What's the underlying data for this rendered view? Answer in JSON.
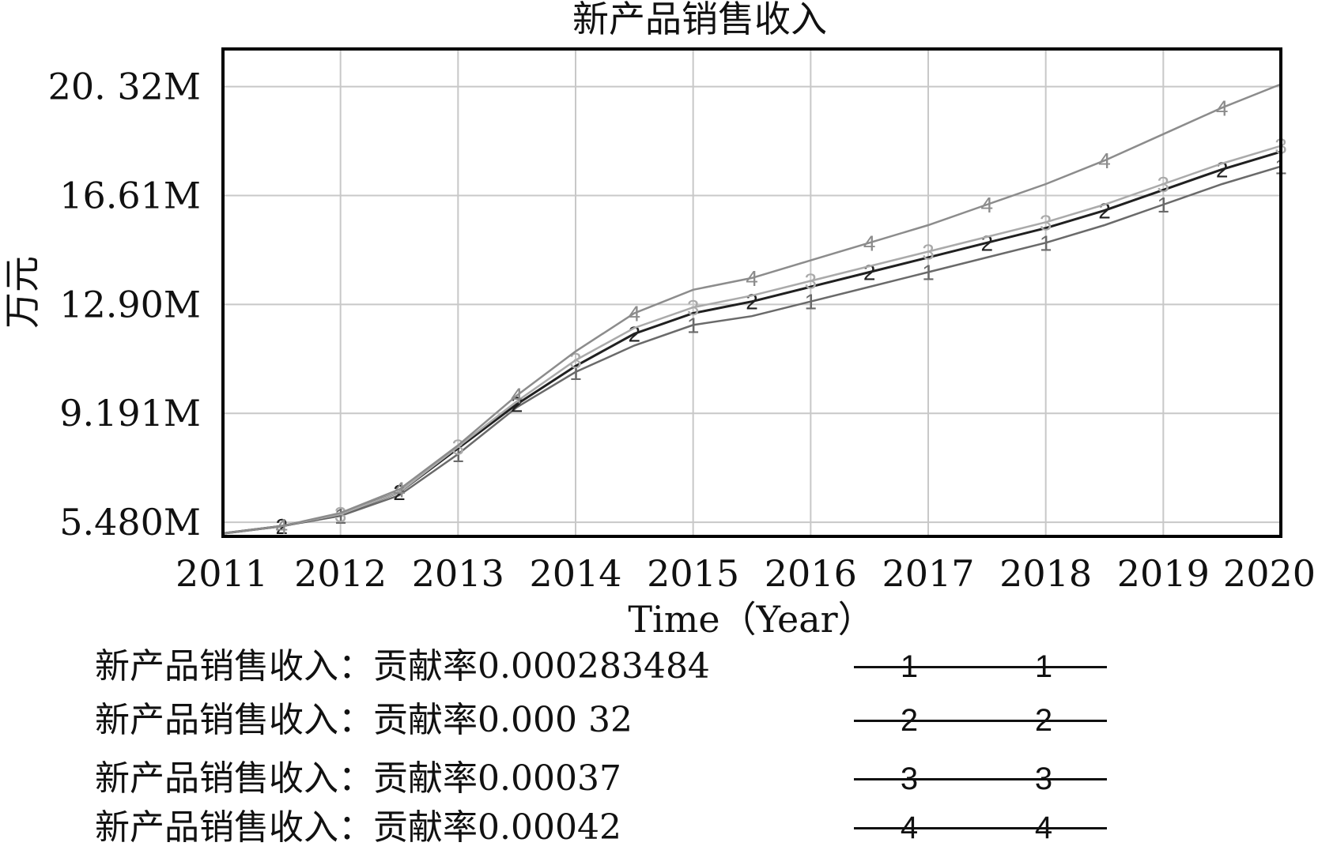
{
  "chart_data": {
    "type": "line",
    "title": "新产品销售收入",
    "xlabel": "Time（Year）",
    "ylabel": "万元",
    "x": [
      2011,
      2011.5,
      2012,
      2012.5,
      2013,
      2013.5,
      2014,
      2014.5,
      2015,
      2015.5,
      2016,
      2016.5,
      2017,
      2017.5,
      2018,
      2018.5,
      2019,
      2019.5,
      2020
    ],
    "xlim": [
      2011,
      2020
    ],
    "ylim": [
      5.0,
      21.6
    ],
    "x_ticks": [
      {
        "value": 2011,
        "label": "2011"
      },
      {
        "value": 2012,
        "label": "2012"
      },
      {
        "value": 2013,
        "label": "2013"
      },
      {
        "value": 2014,
        "label": "2014"
      },
      {
        "value": 2015,
        "label": "2015"
      },
      {
        "value": 2016,
        "label": "2016"
      },
      {
        "value": 2017,
        "label": "2017"
      },
      {
        "value": 2018,
        "label": "2018"
      },
      {
        "value": 2019,
        "label": "2019"
      },
      {
        "value": 2020,
        "label": "2020"
      }
    ],
    "y_ticks": [
      {
        "value": 5.48,
        "label": "5.480M"
      },
      {
        "value": 9.191,
        "label": "9.191M"
      },
      {
        "value": 12.9,
        "label": "12.90M"
      },
      {
        "value": 16.61,
        "label": "16.61M"
      },
      {
        "value": 20.32,
        "label": "20. 32M"
      }
    ],
    "grid": true,
    "series": [
      {
        "name": "新产品销售收入：贡献率0.000283484",
        "marker": "1",
        "color": "#6a6a6a",
        "values": [
          5.1,
          5.35,
          5.7,
          6.4,
          7.8,
          9.4,
          10.6,
          11.5,
          12.2,
          12.5,
          13.0,
          13.5,
          14.0,
          14.5,
          15.0,
          15.6,
          16.3,
          17.0,
          17.6
        ]
      },
      {
        "name": "新产品销售收入：贡献率0.000 32",
        "marker": "2",
        "color": "#202020",
        "values": [
          5.1,
          5.35,
          5.75,
          6.5,
          8.0,
          9.5,
          10.8,
          11.9,
          12.6,
          13.0,
          13.5,
          14.0,
          14.5,
          15.0,
          15.5,
          16.1,
          16.8,
          17.5,
          18.1
        ]
      },
      {
        "name": "新产品销售收入：贡献率0.00037",
        "marker": "3",
        "color": "#aaaaaa",
        "values": [
          5.1,
          5.35,
          5.75,
          6.5,
          8.05,
          9.6,
          11.0,
          12.1,
          12.8,
          13.2,
          13.7,
          14.2,
          14.7,
          15.2,
          15.7,
          16.3,
          17.0,
          17.7,
          18.3
        ]
      },
      {
        "name": "新产品销售收入：贡献率0.00042",
        "marker": "4",
        "color": "#8c8c8c",
        "values": [
          5.1,
          5.35,
          5.8,
          6.6,
          8.1,
          9.8,
          11.3,
          12.6,
          13.4,
          13.8,
          14.4,
          15.0,
          15.6,
          16.3,
          17.0,
          17.8,
          18.7,
          19.6,
          20.4
        ]
      }
    ]
  }
}
